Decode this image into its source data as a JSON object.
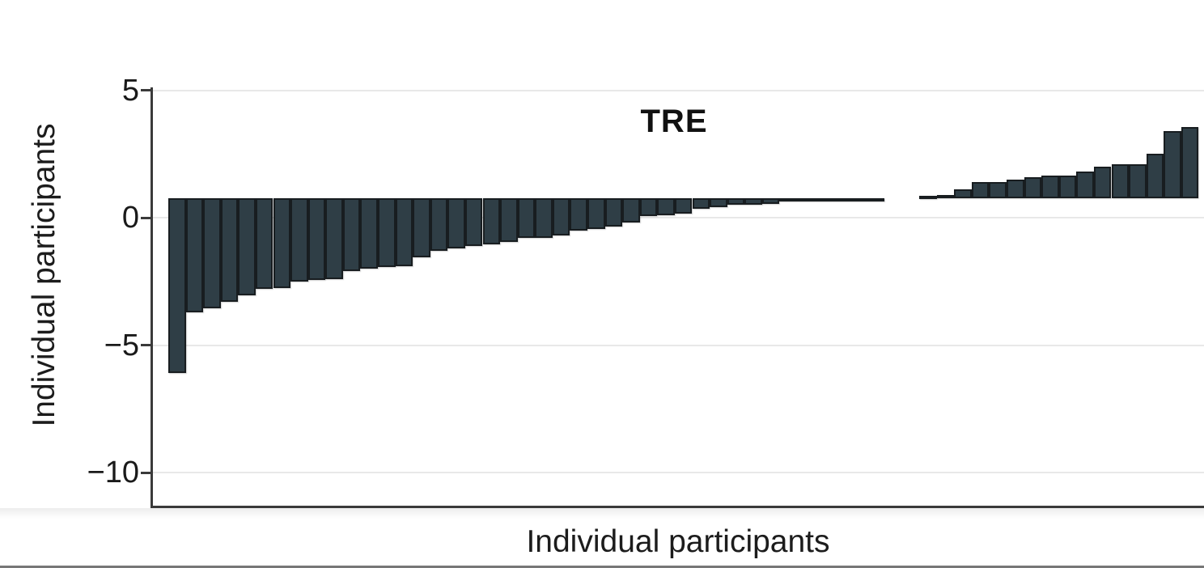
{
  "figure": {
    "group_label": "TRE",
    "y_axis_label": "Individual participants",
    "x_axis_label": "Individual participants"
  },
  "chart_data": {
    "type": "bar",
    "title": "TRE",
    "xlabel": "Individual participants",
    "ylabel": "Individual participants",
    "description": "Waterfall plot of change for individual participants in the TRE group, sorted ascending; bars hang from a baseline of about +0.75 on the y-axis; a two-slot gap separates the flat middle bars from the positive bars",
    "ylim": [
      -11.3,
      5.5
    ],
    "yticks": [
      5,
      0,
      -5,
      -10
    ],
    "ytick_labels": [
      "5",
      "0",
      "−5",
      "−10"
    ],
    "grid": true,
    "legend_position": "none",
    "bar_baseline": 0.75,
    "bar_color": "#2f3e46",
    "bar_border_color": "#181d20",
    "axis_color": "#3a3a3a",
    "gridline_color": "#e8e8e8",
    "values": [
      -6.1,
      -3.7,
      -3.55,
      -3.3,
      -3.05,
      -2.8,
      -2.75,
      -2.5,
      -2.45,
      -2.4,
      -2.1,
      -2.0,
      -1.95,
      -1.9,
      -1.55,
      -1.3,
      -1.2,
      -1.1,
      -1.05,
      -0.95,
      -0.8,
      -0.8,
      -0.7,
      -0.5,
      -0.45,
      -0.35,
      -0.2,
      0.05,
      0.1,
      0.15,
      0.35,
      0.4,
      0.5,
      0.52,
      0.55,
      0.63,
      0.7,
      0.72,
      0.74,
      0.75,
      0.75,
      null,
      null,
      0.85,
      0.9,
      1.1,
      1.4,
      1.4,
      1.5,
      1.6,
      1.65,
      1.65,
      1.8,
      2.0,
      2.1,
      2.1,
      2.5,
      3.4,
      3.55
    ]
  }
}
